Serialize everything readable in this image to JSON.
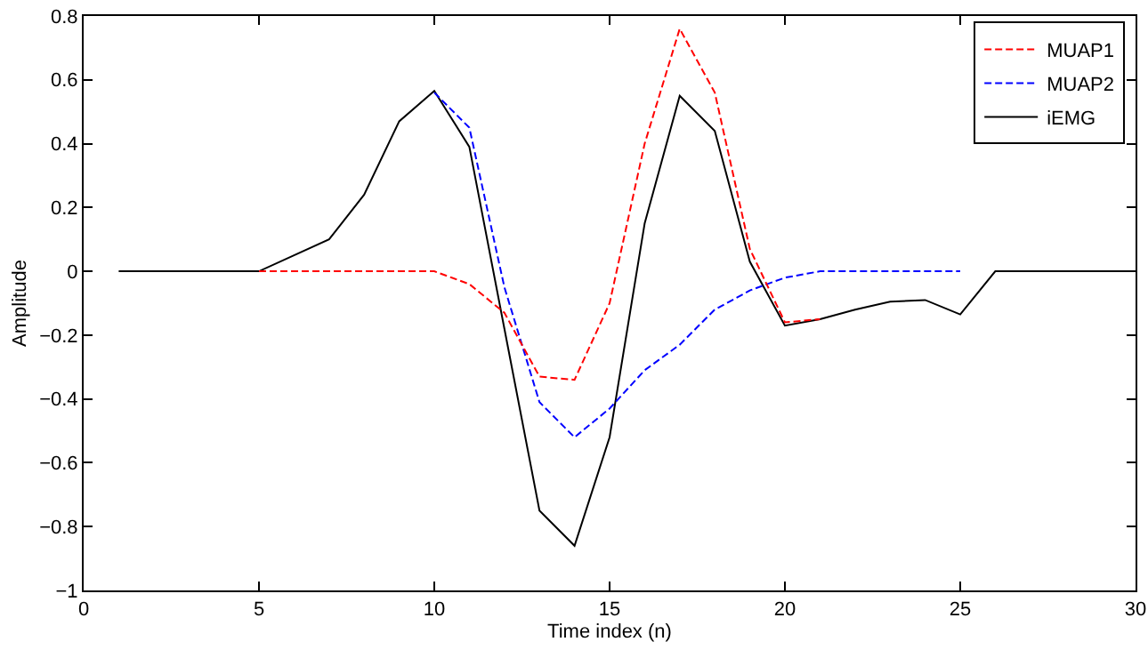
{
  "chart_data": {
    "type": "line",
    "xlabel": "Time index (n)",
    "ylabel": "Amplitude",
    "xlim": [
      0,
      30
    ],
    "xticks": [
      0,
      5,
      10,
      15,
      20,
      25,
      30
    ],
    "ylim": [
      -1,
      0.8
    ],
    "yticks": [
      -1,
      -0.8,
      -0.6,
      -0.4,
      -0.2,
      0,
      0.2,
      0.4,
      0.6,
      0.8
    ],
    "grid": false,
    "legend": "top right",
    "marker": "none",
    "series": [
      {
        "name": "MUAP1",
        "color": "#ff0000",
        "line_style": "dashed",
        "x": [
          5,
          6,
          7,
          8,
          9,
          10,
          11,
          12,
          13,
          14,
          15,
          16,
          17,
          18,
          19,
          20,
          21
        ],
        "values": [
          0,
          0,
          0,
          0,
          0,
          0,
          -0.04,
          -0.13,
          -0.33,
          -0.34,
          -0.1,
          0.4,
          0.76,
          0.56,
          0.07,
          -0.16,
          -0.15
        ]
      },
      {
        "name": "MUAP2",
        "color": "#0000ff",
        "line_style": "dashed",
        "x": [
          10,
          11,
          12,
          13,
          14,
          15,
          16,
          17,
          18,
          19,
          20,
          21,
          22,
          23,
          24,
          25
        ],
        "values": [
          0.56,
          0.45,
          -0.05,
          -0.41,
          -0.52,
          -0.43,
          -0.31,
          -0.23,
          -0.12,
          -0.06,
          -0.02,
          0,
          0,
          0,
          0,
          0
        ]
      },
      {
        "name": "iEMG",
        "color": "#000000",
        "line_style": "solid",
        "x": [
          1,
          2,
          3,
          4,
          5,
          6,
          7,
          8,
          9,
          10,
          11,
          12,
          13,
          14,
          15,
          16,
          17,
          18,
          19,
          20,
          21,
          22,
          23,
          24,
          25,
          26,
          27,
          28,
          29,
          30
        ],
        "values": [
          0,
          0,
          0,
          0,
          0,
          0.05,
          0.1,
          0.24,
          0.47,
          0.565,
          0.39,
          -0.18,
          -0.75,
          -0.86,
          -0.52,
          0.15,
          0.55,
          0.44,
          0.03,
          -0.17,
          -0.15,
          -0.12,
          -0.095,
          -0.09,
          -0.135,
          0,
          0,
          0,
          0,
          0
        ]
      }
    ]
  }
}
